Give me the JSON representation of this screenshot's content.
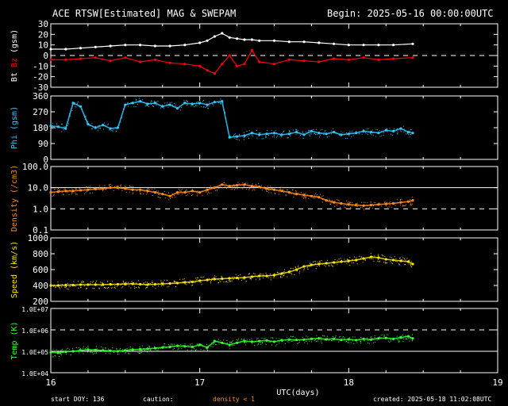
{
  "header": {
    "title": "ACE RTSW[Estimated] MAG & SWEPAM",
    "begin": "Begin: 2025-05-16 00:00:00UTC"
  },
  "footer": {
    "start_doy": "start DOY: 136",
    "caution": "caution:",
    "density_note": "density < 1",
    "created": "created: 2025-05-18 11:02:08UTC"
  },
  "colors": {
    "background": "#000000",
    "axes": "#ffffff",
    "bt": "#ffffff",
    "bz": "#ff0000",
    "phi": "#33c8ff",
    "density": "#ff8c1a",
    "speed": "#ffe600",
    "temp": "#33ff33"
  },
  "chart_data": [
    {
      "type": "line",
      "panel": "mag",
      "ylabel_parts": [
        "Bt",
        "Bz",
        "(gsm)"
      ],
      "ylim": [
        -30,
        30
      ],
      "yticks": [
        -30,
        -20,
        -10,
        0,
        10,
        20,
        30
      ],
      "hlines": [
        {
          "y": 0,
          "style": "dashed"
        }
      ],
      "series": [
        {
          "name": "Bt",
          "color": "#ffffff",
          "x": [
            16.0,
            16.1,
            16.2,
            16.3,
            16.4,
            16.5,
            16.6,
            16.7,
            16.8,
            16.9,
            17.0,
            17.05,
            17.1,
            17.15,
            17.2,
            17.25,
            17.3,
            17.35,
            17.4,
            17.5,
            17.6,
            17.7,
            17.8,
            17.9,
            18.0,
            18.1,
            18.2,
            18.3,
            18.43
          ],
          "y": [
            6,
            6,
            7,
            8,
            9,
            10,
            10,
            9,
            9,
            10,
            12,
            14,
            18,
            21,
            17,
            16,
            15,
            15,
            14,
            14,
            13,
            13,
            12,
            11,
            10,
            10,
            10,
            10,
            11
          ]
        },
        {
          "name": "Bz",
          "color": "#ff0000",
          "x": [
            16.0,
            16.1,
            16.2,
            16.3,
            16.4,
            16.5,
            16.6,
            16.7,
            16.8,
            16.9,
            17.0,
            17.05,
            17.1,
            17.15,
            17.2,
            17.25,
            17.3,
            17.35,
            17.4,
            17.5,
            17.6,
            17.7,
            17.8,
            17.9,
            18.0,
            18.1,
            18.2,
            18.3,
            18.43
          ],
          "y": [
            -4,
            -4,
            -3,
            -2,
            -5,
            -2,
            -6,
            -4,
            -7,
            -8,
            -10,
            -14,
            -17,
            -8,
            0,
            -10,
            -8,
            5,
            -6,
            -8,
            -4,
            -5,
            -6,
            -3,
            -4,
            -2,
            -4,
            -3,
            -2
          ]
        }
      ]
    },
    {
      "type": "scatter",
      "panel": "phi",
      "ylabel_parts": [
        "Phi",
        "(gsm)"
      ],
      "ylim": [
        0,
        360
      ],
      "yticks": [
        0,
        90,
        180,
        270,
        360
      ],
      "series": [
        {
          "name": "Phi",
          "color": "#33c8ff",
          "x": [
            16.0,
            16.05,
            16.1,
            16.15,
            16.2,
            16.25,
            16.3,
            16.35,
            16.4,
            16.45,
            16.5,
            16.55,
            16.6,
            16.65,
            16.7,
            16.75,
            16.8,
            16.85,
            16.9,
            16.95,
            17.0,
            17.05,
            17.1,
            17.15,
            17.2,
            17.25,
            17.3,
            17.35,
            17.4,
            17.45,
            17.5,
            17.55,
            17.6,
            17.65,
            17.7,
            17.75,
            17.8,
            17.85,
            17.9,
            17.95,
            18.0,
            18.05,
            18.1,
            18.15,
            18.2,
            18.25,
            18.3,
            18.35,
            18.4,
            18.43
          ],
          "y": [
            190,
            185,
            175,
            320,
            300,
            200,
            180,
            195,
            175,
            180,
            310,
            320,
            330,
            315,
            320,
            300,
            310,
            290,
            320,
            315,
            320,
            310,
            325,
            330,
            125,
            130,
            135,
            150,
            140,
            145,
            150,
            140,
            145,
            155,
            140,
            160,
            150,
            145,
            155,
            140,
            145,
            150,
            160,
            155,
            150,
            165,
            160,
            175,
            155,
            150
          ]
        }
      ]
    },
    {
      "type": "scatter",
      "panel": "density",
      "ylabel_parts": [
        "Density",
        "(/cm3)"
      ],
      "yscale": "log",
      "ylim": [
        0.1,
        100
      ],
      "yticks": [
        0.1,
        1.0,
        10.0,
        100.0
      ],
      "ytick_labels": [
        "0.1",
        "1.0",
        "10.0",
        "100.0"
      ],
      "hlines": [
        {
          "y": 10,
          "style": "solid"
        },
        {
          "y": 1,
          "style": "dashed"
        }
      ],
      "series": [
        {
          "name": "Density",
          "color": "#ff8c1a",
          "x": [
            16.0,
            16.05,
            16.1,
            16.15,
            16.2,
            16.25,
            16.3,
            16.35,
            16.4,
            16.45,
            16.5,
            16.55,
            16.6,
            16.65,
            16.7,
            16.75,
            16.8,
            16.85,
            16.9,
            16.95,
            17.0,
            17.05,
            17.1,
            17.15,
            17.2,
            17.25,
            17.3,
            17.35,
            17.4,
            17.45,
            17.5,
            17.55,
            17.6,
            17.65,
            17.7,
            17.75,
            17.8,
            17.85,
            17.9,
            17.95,
            18.0,
            18.05,
            18.1,
            18.15,
            18.2,
            18.25,
            18.3,
            18.35,
            18.4,
            18.43
          ],
          "y": [
            6,
            6.5,
            7,
            7,
            7.5,
            8,
            8.5,
            9,
            10,
            10,
            9,
            8,
            8,
            7,
            6,
            5,
            4,
            6,
            6,
            7,
            6,
            8,
            10,
            14,
            12,
            13,
            14,
            12,
            11,
            9,
            8,
            7,
            6,
            5,
            4.5,
            4,
            3.5,
            2.5,
            2.0,
            1.8,
            1.6,
            1.5,
            1.4,
            1.5,
            1.6,
            1.7,
            1.8,
            2.0,
            2.2,
            2.5
          ]
        }
      ]
    },
    {
      "type": "scatter",
      "panel": "speed",
      "ylabel_parts": [
        "Speed",
        "(km/s)"
      ],
      "ylim": [
        200,
        1000
      ],
      "yticks": [
        200,
        400,
        600,
        800,
        1000
      ],
      "series": [
        {
          "name": "Speed",
          "color": "#ffe600",
          "x": [
            16.0,
            16.05,
            16.1,
            16.15,
            16.2,
            16.25,
            16.3,
            16.35,
            16.4,
            16.45,
            16.5,
            16.55,
            16.6,
            16.65,
            16.7,
            16.75,
            16.8,
            16.85,
            16.9,
            16.95,
            17.0,
            17.05,
            17.1,
            17.15,
            17.2,
            17.25,
            17.3,
            17.35,
            17.4,
            17.45,
            17.5,
            17.55,
            17.6,
            17.65,
            17.7,
            17.75,
            17.8,
            17.85,
            17.9,
            17.95,
            18.0,
            18.05,
            18.1,
            18.15,
            18.2,
            18.25,
            18.3,
            18.35,
            18.4,
            18.43
          ],
          "y": [
            400,
            400,
            405,
            405,
            410,
            410,
            410,
            410,
            415,
            415,
            420,
            420,
            415,
            410,
            415,
            420,
            425,
            430,
            440,
            445,
            460,
            470,
            480,
            485,
            490,
            495,
            500,
            510,
            520,
            520,
            530,
            550,
            570,
            600,
            640,
            660,
            670,
            680,
            690,
            700,
            710,
            720,
            740,
            760,
            750,
            730,
            720,
            710,
            700,
            670
          ]
        }
      ]
    },
    {
      "type": "scatter",
      "panel": "temp",
      "ylabel_parts": [
        "Temp",
        "(K)"
      ],
      "yscale": "log",
      "ylim": [
        10000,
        10000000
      ],
      "yticks": [
        10000,
        100000,
        1000000,
        10000000
      ],
      "ytick_labels": [
        "1.0E+04",
        "1.0E+05",
        "1.0E+06",
        "1.0E+07"
      ],
      "hlines": [
        {
          "y": 1000000,
          "style": "dashed"
        },
        {
          "y": 100000,
          "style": "solid"
        }
      ],
      "xlabel": "UTC(days)",
      "xlim": [
        16,
        19
      ],
      "xticks": [
        16,
        17,
        18,
        19
      ],
      "series": [
        {
          "name": "Temp",
          "color": "#33ff33",
          "x": [
            16.0,
            16.05,
            16.1,
            16.15,
            16.2,
            16.25,
            16.3,
            16.35,
            16.4,
            16.45,
            16.5,
            16.55,
            16.6,
            16.65,
            16.7,
            16.75,
            16.8,
            16.85,
            16.9,
            16.95,
            17.0,
            17.05,
            17.1,
            17.15,
            17.2,
            17.25,
            17.3,
            17.35,
            17.4,
            17.45,
            17.5,
            17.55,
            17.6,
            17.65,
            17.7,
            17.75,
            17.8,
            17.85,
            17.9,
            17.95,
            18.0,
            18.05,
            18.1,
            18.15,
            18.2,
            18.25,
            18.3,
            18.35,
            18.4,
            18.43
          ],
          "y": [
            90000,
            85000,
            95000,
            100000,
            110000,
            120000,
            115000,
            110000,
            105000,
            100000,
            110000,
            120000,
            125000,
            130000,
            140000,
            150000,
            160000,
            180000,
            170000,
            160000,
            200000,
            150000,
            300000,
            250000,
            200000,
            250000,
            300000,
            280000,
            300000,
            320000,
            280000,
            330000,
            350000,
            340000,
            350000,
            380000,
            400000,
            360000,
            380000,
            340000,
            360000,
            330000,
            380000,
            350000,
            400000,
            420000,
            380000,
            440000,
            500000,
            400000
          ]
        }
      ]
    }
  ]
}
